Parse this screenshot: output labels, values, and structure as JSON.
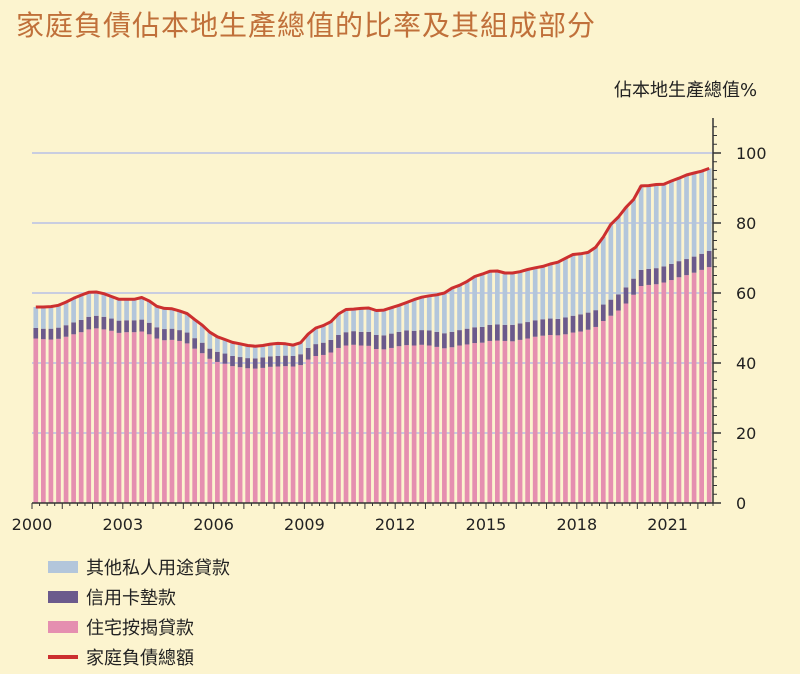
{
  "title": "家庭負債佔本地生產總值的比率及其組成部分",
  "chart_data": {
    "type": "bar",
    "unit_label": "佔本地生產總值%",
    "x_start": 2000,
    "quarters_per_year": 4,
    "x_ticks": [
      "2000",
      "2003",
      "2006",
      "2009",
      "2012",
      "2015",
      "2018",
      "2021"
    ],
    "ylim": [
      0,
      100
    ],
    "y_ticks": [
      0,
      20,
      40,
      60,
      80,
      100
    ],
    "grid": true,
    "legend_position": "bottom-left",
    "series": [
      {
        "name": "其他私人用途貸款",
        "color": "#b3c6db",
        "legend_swatch": "bar"
      },
      {
        "name": "信用卡墊款",
        "color": "#6b5a8c",
        "legend_swatch": "bar"
      },
      {
        "name": "住宅按揭貸款",
        "color": "#e58fb0",
        "legend_swatch": "bar"
      },
      {
        "name": "家庭負債總額",
        "color": "#cc2f2f",
        "legend_swatch": "line"
      }
    ],
    "mortgage": [
      47.0,
      46.8,
      46.7,
      46.9,
      47.5,
      48.2,
      48.8,
      49.6,
      49.9,
      49.6,
      49.2,
      48.6,
      48.8,
      48.8,
      49.0,
      48.2,
      47.0,
      46.5,
      46.6,
      46.3,
      45.6,
      44.1,
      42.8,
      41.2,
      40.3,
      39.8,
      39.1,
      38.8,
      38.5,
      38.4,
      38.6,
      38.9,
      39.0,
      39.1,
      39.0,
      39.4,
      41.0,
      42.0,
      42.3,
      43.0,
      44.3,
      45.0,
      45.2,
      45.0,
      44.9,
      44.0,
      43.9,
      44.3,
      44.8,
      45.1,
      45.0,
      45.2,
      45.0,
      44.6,
      44.2,
      44.5,
      45.0,
      45.3,
      45.7,
      45.8,
      46.3,
      46.4,
      46.3,
      46.2,
      46.6,
      47.0,
      47.5,
      47.8,
      48.0,
      47.9,
      48.2,
      48.7,
      49.0,
      49.5,
      50.3,
      52.0,
      53.5,
      55.0,
      57.0,
      59.5,
      62.0,
      62.3,
      62.5,
      63.0,
      63.7,
      64.5,
      65.1,
      65.8,
      66.6,
      67.4
    ],
    "credit_card": [
      3.0,
      3.0,
      3.1,
      3.2,
      3.3,
      3.4,
      3.5,
      3.6,
      3.6,
      3.6,
      3.5,
      3.5,
      3.4,
      3.4,
      3.4,
      3.3,
      3.2,
      3.2,
      3.2,
      3.1,
      3.1,
      3.0,
      3.0,
      2.9,
      2.9,
      2.9,
      2.9,
      2.9,
      2.9,
      2.9,
      3.0,
      3.0,
      3.0,
      3.0,
      3.0,
      3.1,
      3.3,
      3.4,
      3.5,
      3.6,
      3.7,
      3.8,
      3.9,
      3.9,
      4.0,
      4.0,
      4.0,
      4.1,
      4.1,
      4.2,
      4.2,
      4.2,
      4.3,
      4.3,
      4.3,
      4.4,
      4.4,
      4.5,
      4.5,
      4.5,
      4.6,
      4.6,
      4.6,
      4.7,
      4.7,
      4.7,
      4.7,
      4.7,
      4.7,
      4.7,
      4.8,
      4.8,
      4.9,
      4.9,
      4.8,
      4.7,
      4.6,
      4.6,
      4.6,
      4.6,
      4.6,
      4.6,
      4.6,
      4.6,
      4.6,
      4.6,
      4.6,
      4.6,
      4.6,
      4.6
    ],
    "other_personal": [
      6.0,
      6.2,
      6.3,
      6.4,
      6.6,
      6.9,
      7.1,
      7.0,
      6.8,
      6.6,
      6.3,
      6.1,
      6.0,
      6.0,
      6.3,
      6.2,
      6.0,
      5.9,
      5.7,
      5.5,
      5.4,
      5.3,
      5.0,
      4.7,
      4.3,
      4.0,
      3.9,
      3.8,
      3.6,
      3.5,
      3.4,
      3.5,
      3.6,
      3.4,
      3.1,
      3.3,
      4.0,
      4.6,
      4.9,
      5.2,
      6.0,
      6.5,
      6.3,
      6.7,
      6.8,
      7.0,
      7.2,
      7.4,
      7.6,
      8.0,
      8.9,
      9.4,
      9.9,
      10.6,
      11.5,
      12.5,
      12.8,
      13.5,
      14.5,
      15.1,
      15.3,
      15.3,
      14.8,
      14.8,
      14.8,
      15.0,
      15.0,
      15.1,
      15.6,
      16.2,
      16.9,
      17.5,
      17.3,
      17.2,
      18.0,
      19.3,
      21.5,
      22.1,
      22.9,
      22.6,
      24.0,
      23.8,
      23.9,
      23.5,
      23.7,
      23.7,
      24.0,
      23.9,
      23.6,
      23.6
    ],
    "total": [
      56.0,
      56.0,
      56.1,
      56.5,
      57.4,
      58.5,
      59.4,
      60.2,
      60.3,
      59.8,
      59.0,
      58.2,
      58.2,
      58.2,
      58.7,
      57.7,
      56.2,
      55.6,
      55.5,
      54.9,
      54.1,
      52.4,
      50.8,
      48.8,
      47.5,
      46.7,
      45.9,
      45.5,
      45.0,
      44.8,
      45.0,
      45.4,
      45.6,
      45.5,
      45.1,
      45.8,
      48.3,
      50.0,
      50.7,
      51.8,
      54.0,
      55.3,
      55.4,
      55.6,
      55.7,
      55.0,
      55.1,
      55.8,
      56.5,
      57.3,
      58.1,
      58.8,
      59.2,
      59.5,
      60.0,
      61.4,
      62.2,
      63.3,
      64.7,
      65.4,
      66.2,
      66.3,
      65.7,
      65.7,
      66.1,
      66.7,
      67.2,
      67.6,
      68.3,
      68.8,
      69.9,
      71.0,
      71.2,
      71.6,
      73.1,
      76.0,
      79.6,
      81.7,
      84.5,
      86.7,
      90.6,
      90.7,
      91.0,
      91.1,
      92.0,
      92.8,
      93.7,
      94.3,
      94.8,
      95.6
    ]
  }
}
